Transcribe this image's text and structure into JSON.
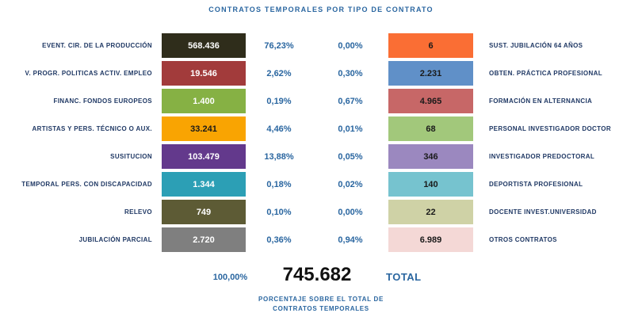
{
  "title": "CONTRATOS TEMPORALES POR TIPO DE CONTRATO",
  "colors": {
    "accent_blue": "#2a66a0",
    "label_navy": "#1f3864",
    "total_black": "#111111",
    "background": "#ffffff"
  },
  "rows": [
    {
      "left": {
        "label": "EVENT. CIR. DE LA PRODUCCIÓN",
        "value": "568.436",
        "percent": "76,23%",
        "bar_color": "#2f2d1b",
        "value_color": "#ffffff"
      },
      "right": {
        "percent": "0,00%",
        "value": "6",
        "label": "SUST. JUBILACIÓN 64 AÑOS",
        "bar_color": "#fa6e34",
        "value_color": "#1a1a1a"
      }
    },
    {
      "left": {
        "label": "V. PROGR. POLITICAS ACTIV. EMPLEO",
        "value": "19.546",
        "percent": "2,62%",
        "bar_color": "#a23b3b",
        "value_color": "#ffffff"
      },
      "right": {
        "percent": "0,30%",
        "value": "2.231",
        "label": "OBTEN. PRÁCTICA PROFESIONAL",
        "bar_color": "#6090c8",
        "value_color": "#1a1a1a"
      }
    },
    {
      "left": {
        "label": "FINANC. FONDOS EUROPEOS",
        "value": "1.400",
        "percent": "0,19%",
        "bar_color": "#86b144",
        "value_color": "#ffffff"
      },
      "right": {
        "percent": "0,67%",
        "value": "4.965",
        "label": "FORMACIÓN EN ALTERNANCIA",
        "bar_color": "#c76767",
        "value_color": "#1a1a1a"
      }
    },
    {
      "left": {
        "label": "ARTISTAS Y PERS. TÉCNICO O AUX.",
        "value": "33.241",
        "percent": "4,46%",
        "bar_color": "#f9a402",
        "value_color": "#1a1a1a"
      },
      "right": {
        "percent": "0,01%",
        "value": "68",
        "label": "PERSONAL INVESTIGADOR DOCTOR",
        "bar_color": "#a2c87b",
        "value_color": "#1a1a1a"
      }
    },
    {
      "left": {
        "label": "SUSITUCION",
        "value": "103.479",
        "percent": "13,88%",
        "bar_color": "#63398c",
        "value_color": "#ffffff"
      },
      "right": {
        "percent": "0,05%",
        "value": "346",
        "label": "INVESTIGADOR PREDOCTORAL",
        "bar_color": "#9b88bf",
        "value_color": "#1a1a1a"
      }
    },
    {
      "left": {
        "label": "TEMPORAL PERS. CON DISCAPACIDAD",
        "value": "1.344",
        "percent": "0,18%",
        "bar_color": "#2c9fb5",
        "value_color": "#ffffff"
      },
      "right": {
        "percent": "0,02%",
        "value": "140",
        "label": "DEPORTISTA PROFESIONAL",
        "bar_color": "#76c3cf",
        "value_color": "#1a1a1a"
      }
    },
    {
      "left": {
        "label": "RELEVO",
        "value": "749",
        "percent": "0,10%",
        "bar_color": "#5d5b35",
        "value_color": "#ffffff"
      },
      "right": {
        "percent": "0,00%",
        "value": "22",
        "label": "DOCENTE INVEST.UNIVERSIDAD",
        "bar_color": "#cfd2a6",
        "value_color": "#1a1a1a"
      }
    },
    {
      "left": {
        "label": "JUBILACIÓN PARCIAL",
        "value": "2.720",
        "percent": "0,36%",
        "bar_color": "#7f7f7f",
        "value_color": "#ffffff"
      },
      "right": {
        "percent": "0,94%",
        "value": "6.989",
        "label": "OTROS CONTRATOS",
        "bar_color": "#f4d8d6",
        "value_color": "#1a1a1a"
      }
    }
  ],
  "footer": {
    "total_percent": "100,00%",
    "total_value": "745.682",
    "total_label": "TOTAL",
    "note_line1": "PORCENTAJE SOBRE EL TOTAL DE",
    "note_line2": "CONTRATOS TEMPORALES"
  },
  "chart_data": {
    "type": "bar",
    "title": "CONTRATOS TEMPORALES POR TIPO DE CONTRATO",
    "orientation": "paired-horizontal-table",
    "total": 745682,
    "total_percent": 100.0,
    "left_series": {
      "name": "contratos-temporales-izquierda",
      "categories": [
        "EVENT. CIR. DE LA PRODUCCIÓN",
        "V. PROGR. POLITICAS ACTIV. EMPLEO",
        "FINANC. FONDOS EUROPEOS",
        "ARTISTAS Y PERS. TÉCNICO O AUX.",
        "SUSITUCION",
        "TEMPORAL PERS. CON DISCAPACIDAD",
        "RELEVO",
        "JUBILACIÓN PARCIAL"
      ],
      "values": [
        568436,
        19546,
        1400,
        33241,
        103479,
        1344,
        749,
        2720
      ],
      "percents": [
        76.23,
        2.62,
        0.19,
        4.46,
        13.88,
        0.18,
        0.1,
        0.36
      ]
    },
    "right_series": {
      "name": "contratos-temporales-derecha",
      "categories": [
        "SUST. JUBILACIÓN 64 AÑOS",
        "OBTEN. PRÁCTICA PROFESIONAL",
        "FORMACIÓN EN ALTERNANCIA",
        "PERSONAL INVESTIGADOR DOCTOR",
        "INVESTIGADOR PREDOCTORAL",
        "DEPORTISTA PROFESIONAL",
        "DOCENTE INVEST.UNIVERSIDAD",
        "OTROS CONTRATOS"
      ],
      "values": [
        6,
        2231,
        4965,
        68,
        346,
        140,
        22,
        6989
      ],
      "percents": [
        0.0,
        0.3,
        0.67,
        0.01,
        0.05,
        0.02,
        0.0,
        0.94
      ]
    },
    "footnote": "PORCENTAJE SOBRE EL TOTAL DE CONTRATOS TEMPORALES",
    "legend": "none",
    "grid": false
  }
}
